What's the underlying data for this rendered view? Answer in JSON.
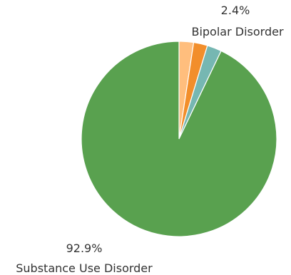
{
  "chart_data": {
    "type": "pie",
    "series": [
      {
        "label": "",
        "value": 2.4,
        "color": "#FFBE7D"
      },
      {
        "label": "",
        "value": 2.3,
        "color": "#F28E2B"
      },
      {
        "label": "Bipolar Disorder",
        "value": 2.4,
        "color": "#76B7B2"
      },
      {
        "label": "Substance Use Disorder",
        "value": 92.9,
        "color": "#59A14F"
      }
    ],
    "labels": {
      "bipolar_pct": "2.4%",
      "bipolar_name": "Bipolar Disorder",
      "substance_pct": "92.9%",
      "substance_name": "Substance Use Disorder"
    }
  }
}
